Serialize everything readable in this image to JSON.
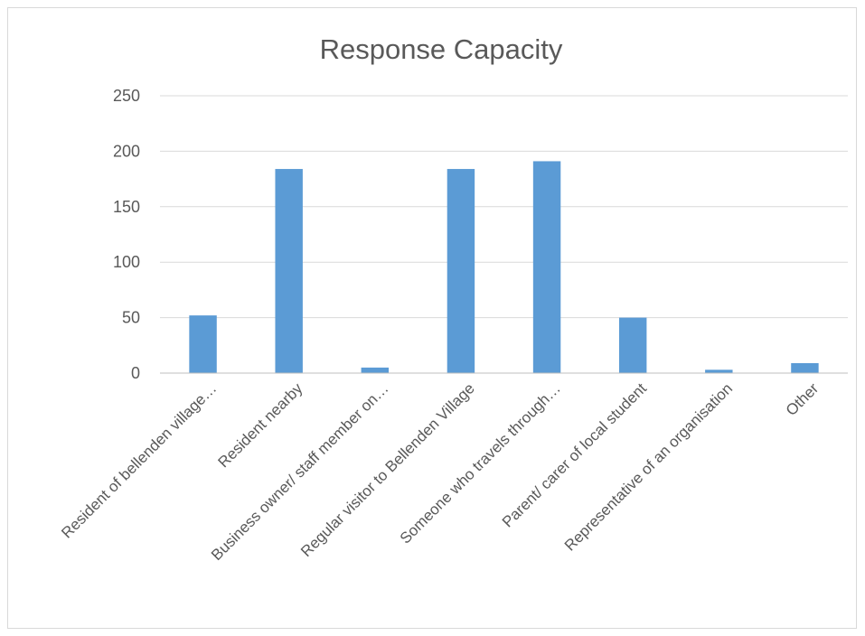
{
  "chart_data": {
    "type": "bar",
    "title": "Response Capacity",
    "xlabel": "",
    "ylabel": "",
    "ylim": [
      0,
      250
    ],
    "yticks": [
      0,
      50,
      100,
      150,
      200,
      250
    ],
    "grid": true,
    "legend": "none",
    "bar_color": "#5b9bd5",
    "categories": [
      "Resident of bellenden village…",
      "Resident nearby",
      "Business owner/ staff member on…",
      "Regular visitor to Bellenden Village",
      "Someone who travels through…",
      "Parent/ carer of local student",
      "Representative of an organisation",
      "Other"
    ],
    "values": [
      52,
      184,
      5,
      184,
      191,
      50,
      3,
      9
    ]
  }
}
